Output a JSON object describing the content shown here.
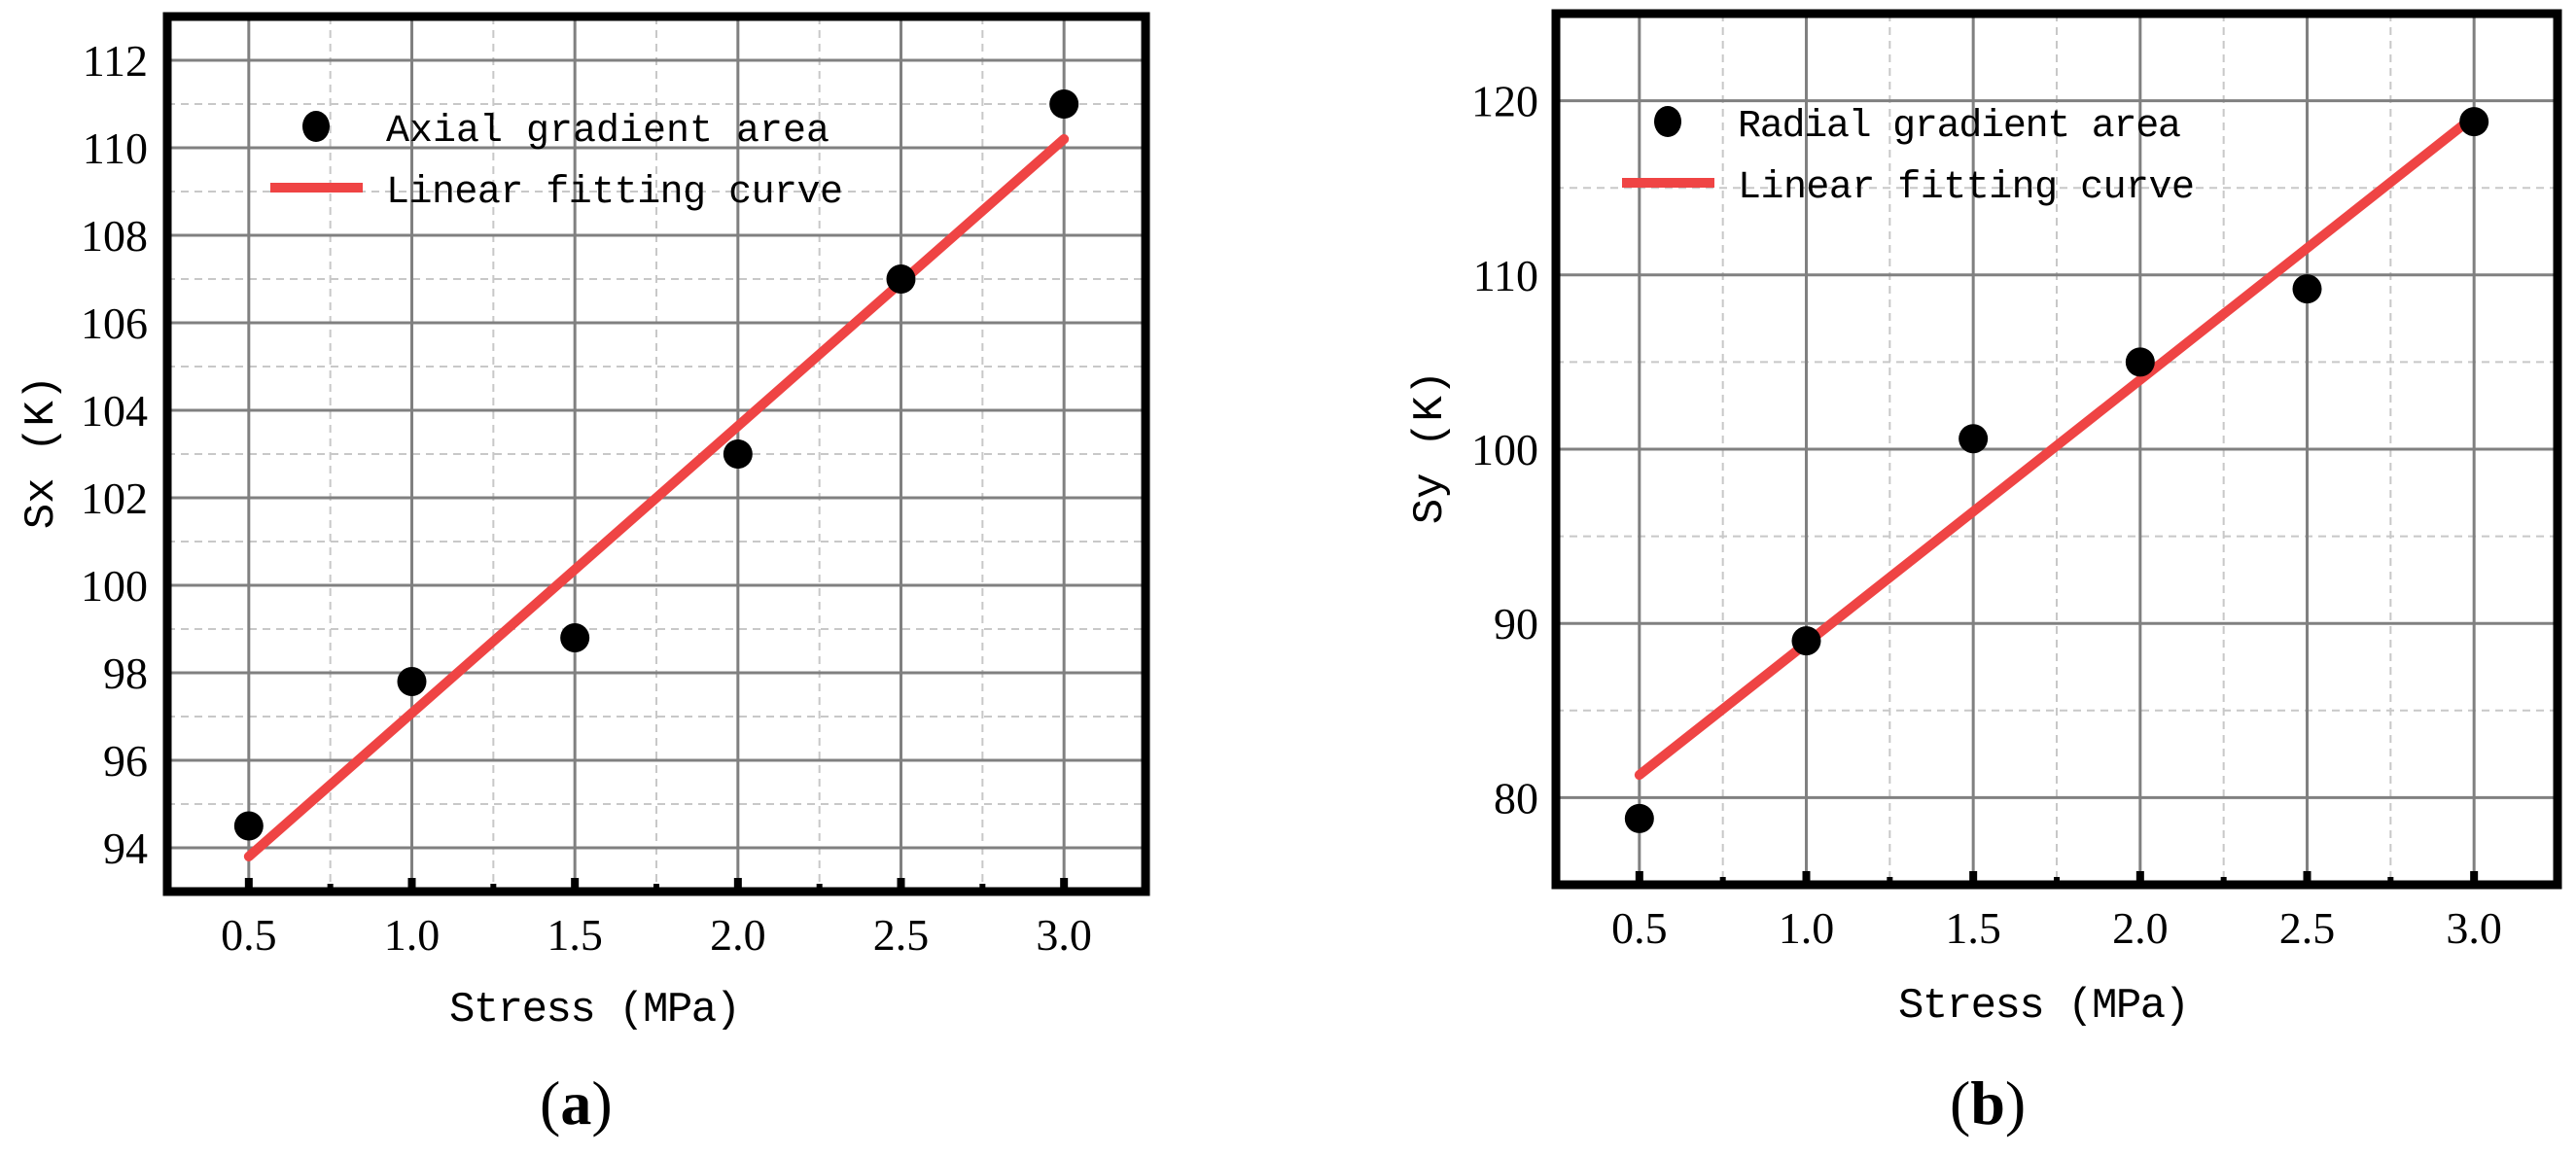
{
  "figure": {
    "panels": [
      {
        "id": "a",
        "label": "(a)",
        "label_letter": "a"
      },
      {
        "id": "b",
        "label": "(b)",
        "label_letter": "b"
      }
    ]
  },
  "colors": {
    "fit_line": "#ef4444",
    "points": "#000000",
    "major_grid": "#808080",
    "minor_grid": "#c8c8c8",
    "frame": "#000000"
  },
  "chart_data": [
    {
      "type": "scatter",
      "panel": "(a)",
      "title": "",
      "xlabel": "Stress (MPa)",
      "ylabel": "Sx (K)",
      "xlim": [
        0.25,
        3.25
      ],
      "ylim": [
        93,
        113
      ],
      "xticks": [
        0.5,
        1.0,
        1.5,
        2.0,
        2.5,
        3.0
      ],
      "xtick_labels": [
        "0.5",
        "1.0",
        "1.5",
        "2.0",
        "2.5",
        "3.0"
      ],
      "yticks": [
        94,
        96,
        98,
        100,
        102,
        104,
        106,
        108,
        110,
        112
      ],
      "ytick_labels": [
        "94",
        "96",
        "98",
        "100",
        "102",
        "104",
        "106",
        "108",
        "110",
        "112"
      ],
      "grid": true,
      "legend_position": "upper left",
      "series": [
        {
          "name": "Axial gradient area",
          "kind": "scatter",
          "marker": "filled-circle",
          "x": [
            0.5,
            1.0,
            1.5,
            2.0,
            2.5,
            3.0
          ],
          "y": [
            94.5,
            97.8,
            98.8,
            103.0,
            107.0,
            111.0
          ]
        },
        {
          "name": "Linear fitting curve",
          "kind": "line",
          "x": [
            0.5,
            3.0
          ],
          "y": [
            93.8,
            110.2
          ]
        }
      ]
    },
    {
      "type": "scatter",
      "panel": "(b)",
      "title": "",
      "xlabel": "Stress (MPa)",
      "ylabel": "Sy (K)",
      "xlim": [
        0.25,
        3.25
      ],
      "ylim": [
        75,
        125
      ],
      "xticks": [
        0.5,
        1.0,
        1.5,
        2.0,
        2.5,
        3.0
      ],
      "xtick_labels": [
        "0.5",
        "1.0",
        "1.5",
        "2.0",
        "2.5",
        "3.0"
      ],
      "yticks": [
        80,
        90,
        100,
        110,
        120
      ],
      "ytick_labels": [
        "80",
        "90",
        "100",
        "110",
        "120"
      ],
      "grid": true,
      "legend_position": "upper left",
      "series": [
        {
          "name": "Radial gradient area",
          "kind": "scatter",
          "marker": "filled-circle",
          "x": [
            0.5,
            1.0,
            1.5,
            2.0,
            2.5,
            3.0
          ],
          "y": [
            78.8,
            89.0,
            100.6,
            105.0,
            109.2,
            118.8
          ]
        },
        {
          "name": "Linear fitting curve",
          "kind": "line",
          "x": [
            0.5,
            3.0
          ],
          "y": [
            81.3,
            119.1
          ]
        }
      ]
    }
  ]
}
